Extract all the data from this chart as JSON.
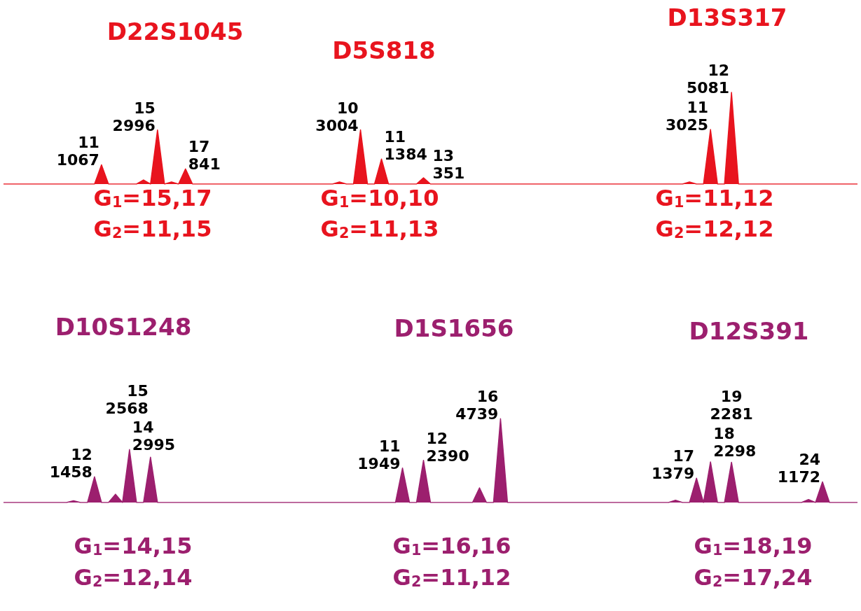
{
  "chart_data": [
    {
      "type": "area",
      "categories": [
        null,
        null,
        null,
        null,
        null,
        null,
        null,
        null,
        null,
        null,
        null,
        null,
        null,
        null,
        null,
        null,
        null,
        null,
        null,
        null,
        null,
        null,
        null,
        null,
        null,
        null,
        null,
        null,
        null,
        null,
        null,
        null,
        null,
        null,
        null,
        null,
        null,
        null,
        null,
        null,
        null,
        null,
        null,
        null,
        null,
        null,
        null,
        null,
        null,
        null,
        null,
        null,
        null,
        null,
        null,
        null,
        null,
        null,
        null,
        null,
        null,
        null,
        null,
        null,
        null,
        null,
        null,
        null,
        null,
        null,
        null,
        null,
        null,
        null,
        null,
        null,
        null,
        null,
        null,
        null,
        null,
        null,
        null,
        null,
        null,
        null,
        null,
        null,
        null,
        null,
        null,
        null,
        null,
        null,
        null,
        null,
        null,
        null,
        null,
        null,
        null,
        null,
        null,
        null,
        null,
        null,
        null,
        null,
        null,
        null,
        null,
        null,
        null,
        null,
        null,
        null,
        null,
        null,
        null,
        null,
        null,
        null,
        null
      ],
      "series": [
        {
          "color": "#e8141e",
          "values": [
            0,
            0,
            0,
            0,
            0,
            0,
            0,
            0,
            0,
            0,
            0,
            0,
            0,
            0,
            1067,
            0,
            0,
            0,
            0,
            0,
            230,
            0,
            2996,
            0,
            115,
            0,
            841,
            0,
            0,
            0,
            0,
            0,
            0,
            0,
            0,
            0,
            0,
            0,
            0,
            0,
            0,
            0,
            0,
            0,
            0,
            0,
            0,
            0,
            115,
            0,
            0,
            3004,
            0,
            0,
            1384,
            0,
            0,
            0,
            0,
            0,
            351,
            0,
            0,
            0,
            0,
            0,
            0,
            0,
            0,
            0,
            0,
            0,
            0,
            0,
            0,
            0,
            0,
            0,
            0,
            0,
            0,
            0,
            0,
            0,
            0,
            0,
            0,
            0,
            0,
            0,
            0,
            0,
            0,
            0,
            0,
            0,
            0,
            0,
            115,
            0,
            0,
            3025,
            0,
            0,
            5081,
            0,
            0,
            0,
            0,
            0,
            0,
            0,
            0,
            0,
            0,
            0,
            0,
            0,
            0,
            0,
            0,
            0,
            0
          ],
          "value_labels": [
            null,
            null,
            null,
            null,
            null,
            null,
            null,
            null,
            null,
            null,
            null,
            null,
            null,
            null,
            "1067",
            null,
            null,
            null,
            null,
            null,
            null,
            null,
            "2996",
            null,
            null,
            null,
            "841",
            null,
            null,
            null,
            null,
            null,
            null,
            null,
            null,
            null,
            null,
            null,
            null,
            null,
            null,
            null,
            null,
            null,
            null,
            null,
            null,
            null,
            null,
            null,
            null,
            "3004",
            null,
            null,
            "1384",
            null,
            null,
            null,
            null,
            null,
            "351",
            null,
            null,
            null,
            null,
            null,
            null,
            null,
            null,
            null,
            null,
            null,
            null,
            null,
            null,
            null,
            null,
            null,
            null,
            null,
            null,
            null,
            null,
            null,
            null,
            null,
            null,
            null,
            null,
            null,
            null,
            null,
            null,
            null,
            null,
            null,
            null,
            null,
            null,
            null,
            null,
            "3025",
            null,
            null,
            "5081",
            null,
            null,
            null,
            null,
            null,
            null,
            null,
            null,
            null,
            null,
            null,
            null,
            null,
            null,
            null,
            null,
            null,
            null
          ]
        }
      ],
      "annotations": [
        "D22S1045",
        "G$_{1}$=15,17",
        "G$_{2}$=11,15",
        "D5S818",
        "G$_{1}$=10,10",
        "G$_{2}$=11,13",
        "D13S317",
        "G$_{1}$=11,12",
        "G$_{2}$=12,12",
        "11",
        "15",
        "17",
        "10",
        "11",
        "13",
        "11",
        "12"
      ],
      "tick_labels": false
    },
    {
      "type": "area",
      "categories": [
        null,
        null,
        null,
        null,
        null,
        null,
        null,
        null,
        null,
        null,
        null,
        null,
        null,
        null,
        null,
        null,
        null,
        null,
        null,
        null,
        null,
        null,
        null,
        null,
        null,
        null,
        null,
        null,
        null,
        null,
        null,
        null,
        null,
        null,
        null,
        null,
        null,
        null,
        null,
        null,
        null,
        null,
        null,
        null,
        null,
        null,
        null,
        null,
        null,
        null,
        null,
        null,
        null,
        null,
        null,
        null,
        null,
        null,
        null,
        null,
        null,
        null,
        null,
        null,
        null,
        null,
        null,
        null,
        null,
        null,
        null,
        null,
        null,
        null,
        null,
        null,
        null,
        null,
        null,
        null,
        null,
        null,
        null,
        null,
        null,
        null,
        null,
        null,
        null,
        null,
        null,
        null,
        null,
        null,
        null,
        null,
        null,
        null,
        null,
        null,
        null,
        null,
        null,
        null,
        null,
        null,
        null,
        null,
        null,
        null,
        null,
        null,
        null,
        null,
        null,
        null,
        null,
        null,
        null,
        null,
        null,
        null,
        null
      ],
      "series": [
        {
          "color": "#9c1f6e",
          "values": [
            0,
            0,
            0,
            0,
            0,
            0,
            0,
            0,
            0,
            0,
            100,
            0,
            0,
            1458,
            0,
            0,
            470,
            0,
            2995,
            0,
            0,
            2568,
            0,
            0,
            0,
            0,
            0,
            0,
            0,
            0,
            0,
            0,
            0,
            0,
            0,
            0,
            0,
            0,
            0,
            0,
            0,
            0,
            0,
            0,
            0,
            0,
            0,
            0,
            0,
            0,
            0,
            0,
            0,
            0,
            0,
            0,
            0,
            1949,
            0,
            0,
            2390,
            0,
            0,
            0,
            0,
            0,
            0,
            0,
            830,
            0,
            0,
            4739,
            0,
            0,
            0,
            0,
            0,
            0,
            0,
            0,
            0,
            0,
            0,
            0,
            0,
            0,
            0,
            0,
            0,
            0,
            0,
            0,
            0,
            0,
            0,
            0,
            130,
            0,
            0,
            1379,
            0,
            2298,
            0,
            0,
            2281,
            0,
            0,
            0,
            0,
            0,
            0,
            0,
            0,
            0,
            0,
            170,
            0,
            1172,
            0,
            0,
            0,
            0,
            0
          ],
          "value_labels": [
            null,
            null,
            null,
            null,
            null,
            null,
            null,
            null,
            null,
            null,
            null,
            null,
            null,
            "1458",
            null,
            null,
            null,
            null,
            "2995",
            null,
            null,
            "2568",
            null,
            null,
            null,
            null,
            null,
            null,
            null,
            null,
            null,
            null,
            null,
            null,
            null,
            null,
            null,
            null,
            null,
            null,
            null,
            null,
            null,
            null,
            null,
            null,
            null,
            null,
            null,
            null,
            null,
            null,
            null,
            null,
            null,
            null,
            null,
            "1949",
            null,
            null,
            "2390",
            null,
            null,
            null,
            null,
            null,
            null,
            null,
            null,
            null,
            null,
            "4739",
            null,
            null,
            null,
            null,
            null,
            null,
            null,
            null,
            null,
            null,
            null,
            null,
            null,
            null,
            null,
            null,
            null,
            null,
            null,
            null,
            null,
            null,
            null,
            null,
            null,
            null,
            null,
            "1379",
            null,
            "2298",
            null,
            null,
            "2281",
            null,
            null,
            null,
            null,
            null,
            null,
            null,
            null,
            null,
            null,
            null,
            null,
            "1172",
            null,
            null,
            null,
            null,
            null
          ]
        }
      ],
      "annotations": [
        "D10S1248",
        "G$_{1}$=14,15",
        "G$_{2}$=12,14",
        "D1S1656",
        "G$_{1}$=16,16",
        "G$_{2}$=11,12",
        "D12S391",
        "G$_{1}$=18,19",
        "G$_{2}$=17,24",
        "12",
        "14",
        "15",
        "11",
        "12",
        "16",
        "17",
        "18",
        "19",
        "24"
      ],
      "tick_labels": false
    }
  ]
}
